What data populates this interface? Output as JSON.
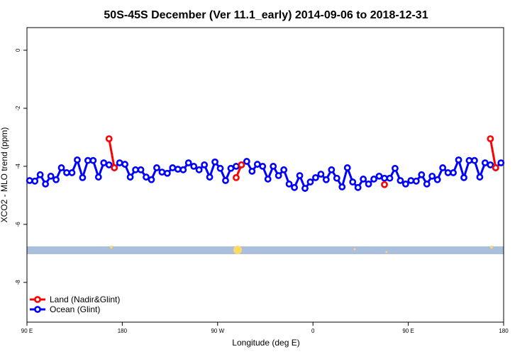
{
  "chart_data": {
    "type": "line",
    "title": "50S-45S December (Ver 11.1_early)   2014-09-06 to 2018-12-31",
    "x_label": "Longitude (deg E)",
    "y_label": "XCO2 - MLO trend (ppm)",
    "xlim": [
      90,
      540
    ],
    "xticks": [
      {
        "value": 90,
        "label": "90 E"
      },
      180,
      {
        "value": 270,
        "label": "90 W"
      },
      {
        "value": 360,
        "label": "0"
      },
      {
        "value": 450,
        "label": "90 E"
      },
      {
        "value": 540,
        "label": "180"
      }
    ],
    "ylim": [
      -9.37,
      0.78
    ],
    "yticks": [
      0,
      -2,
      -4,
      -6,
      -8
    ],
    "legend": "bottom-left",
    "x": [
      92.5,
      97.5,
      102.5,
      107.5,
      112.5,
      117.5,
      122.5,
      127.5,
      132.5,
      137.5,
      142.5,
      147.5,
      152.5,
      157.5,
      162.5,
      167.5,
      172.5,
      177.5,
      182.5,
      187.5,
      192.5,
      197.5,
      202.5,
      207.5,
      212.5,
      217.5,
      222.5,
      227.5,
      232.5,
      237.5,
      242.5,
      247.5,
      252.5,
      257.5,
      262.5,
      267.5,
      272.5,
      277.5,
      282.5,
      287.5,
      292.5,
      297.5,
      302.5,
      307.5,
      312.5,
      317.5,
      322.5,
      327.5,
      332.5,
      337.5,
      342.5,
      347.5,
      352.5,
      357.5,
      362.5,
      367.5,
      372.5,
      377.5,
      382.5,
      387.5,
      392.5,
      397.5,
      402.5,
      407.5,
      412.5,
      417.5,
      422.5,
      427.5,
      432.5,
      437.5,
      442.5,
      447.5,
      452.5,
      457.5,
      462.5,
      467.5,
      472.5,
      477.5,
      482.5,
      487.5,
      492.5,
      497.5,
      502.5,
      507.5,
      512.5,
      517.5,
      522.5,
      527.5,
      532.5,
      537.5
    ],
    "series": [
      {
        "name": "Land (Nadir&Glint)",
        "color": "#ff0000",
        "values": [
          null,
          null,
          null,
          null,
          null,
          null,
          null,
          null,
          null,
          null,
          null,
          null,
          null,
          null,
          null,
          -3.05,
          -4.05,
          null,
          null,
          null,
          null,
          null,
          null,
          null,
          null,
          null,
          null,
          null,
          null,
          null,
          null,
          null,
          null,
          null,
          null,
          null,
          null,
          null,
          null,
          -4.39,
          -3.95,
          null,
          null,
          null,
          null,
          null,
          null,
          null,
          null,
          null,
          null,
          null,
          null,
          null,
          null,
          null,
          null,
          null,
          null,
          null,
          null,
          null,
          null,
          null,
          null,
          null,
          null,
          -4.63,
          null,
          null,
          null,
          null,
          null,
          null,
          null,
          null,
          null,
          null,
          null,
          null,
          null,
          null,
          null,
          null,
          null,
          null,
          null,
          -3.05,
          -4.05,
          null
        ]
      },
      {
        "name": "Ocean (Glint)",
        "color": "#0000ff",
        "values": [
          -4.49,
          -4.51,
          -4.29,
          -4.61,
          -4.34,
          -4.46,
          -4.05,
          -4.22,
          -4.22,
          -3.78,
          -4.39,
          -3.8,
          -3.8,
          -4.37,
          -3.88,
          -3.95,
          -4.05,
          -3.88,
          -3.93,
          -4.37,
          -4.12,
          -4.12,
          -4.37,
          -4.46,
          -4.05,
          -4.2,
          -4.24,
          -4.05,
          -4.1,
          -4.12,
          -3.88,
          -4.0,
          -4.12,
          -3.95,
          -4.37,
          -3.85,
          -4.07,
          -4.49,
          -4.07,
          -4.0,
          -3.95,
          -3.83,
          -4.17,
          -3.93,
          -4.0,
          -4.44,
          -4.0,
          -4.32,
          -4.12,
          -4.61,
          -4.73,
          -4.32,
          -4.76,
          -4.54,
          -4.39,
          -4.27,
          -4.46,
          -4.12,
          -4.41,
          -4.71,
          -4.05,
          -4.54,
          -4.73,
          -4.44,
          -4.61,
          -4.44,
          -4.34,
          -4.41,
          -4.41,
          -4.07,
          -4.49,
          -4.61,
          -4.49,
          -4.51,
          -4.29,
          -4.61,
          -4.34,
          -4.46,
          -4.05,
          -4.22,
          -4.22,
          -3.78,
          -4.39,
          -3.8,
          -3.8,
          -4.37,
          -3.88,
          -3.95,
          -4.05,
          -3.88
        ]
      }
    ]
  }
}
